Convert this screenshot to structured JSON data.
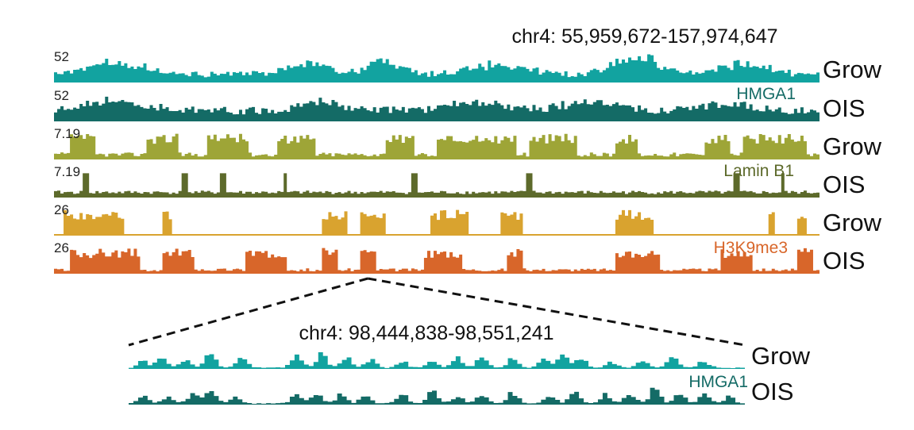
{
  "figure": {
    "top_region_label": "chr4: 55,959,672-157,974,647",
    "zoom_region_label": "chr4: 98,444,838-98,551,241"
  },
  "chart_data": [
    {
      "type": "area",
      "panel": "whole-region",
      "region": "chr4: 55,959,672-157,974,647",
      "xlabel": "",
      "ylabel": "",
      "tracks": [
        {
          "id": "hmga1-grow",
          "mark": "HMGA1",
          "condition": "Grow",
          "scale_label": "52",
          "ylim": [
            0,
            52
          ],
          "color": "#12A3A0",
          "bins": 240,
          "mean": 0.32,
          "jitter": 0.34,
          "seed": 11,
          "bumps": [
            [
              0.08,
              0.55,
              0.05
            ],
            [
              0.33,
              0.45,
              0.04
            ],
            [
              0.43,
              0.55,
              0.03
            ],
            [
              0.58,
              0.45,
              0.05
            ],
            [
              0.76,
              0.75,
              0.04
            ],
            [
              0.9,
              0.5,
              0.04
            ]
          ]
        },
        {
          "id": "hmga1-ois",
          "mark": "HMGA1",
          "condition": "OIS",
          "scale_label": "52",
          "ylim": [
            0,
            52
          ],
          "color": "#146B66",
          "bins": 240,
          "mean": 0.44,
          "jitter": 0.32,
          "seed": 23,
          "bumps": [
            [
              0.08,
              0.45,
              0.05
            ],
            [
              0.35,
              0.4,
              0.04
            ],
            [
              0.55,
              0.35,
              0.05
            ],
            [
              0.7,
              0.45,
              0.05
            ],
            [
              0.88,
              0.35,
              0.04
            ]
          ]
        },
        {
          "id": "laminb1-grow",
          "mark": "Lamin B1",
          "condition": "Grow",
          "scale_label": "7.19",
          "ylim": [
            0,
            7.19
          ],
          "color": "#9EA537",
          "bins": 240,
          "mean": 0.18,
          "jitter": 0.42,
          "seed": 37,
          "blocks": [
            [
              0.02,
              0.05
            ],
            [
              0.12,
              0.16
            ],
            [
              0.2,
              0.25
            ],
            [
              0.29,
              0.34
            ],
            [
              0.43,
              0.47
            ],
            [
              0.5,
              0.6
            ],
            [
              0.62,
              0.68
            ],
            [
              0.73,
              0.76
            ],
            [
              0.85,
              0.88
            ],
            [
              0.9,
              0.98
            ]
          ]
        },
        {
          "id": "laminb1-ois",
          "mark": "Lamin B1",
          "condition": "OIS",
          "scale_label": "7.19",
          "ylim": [
            0,
            7.19
          ],
          "color": "#5D6A2B",
          "bins": 240,
          "mean": 0.22,
          "jitter": 0.28,
          "seed": 41,
          "spikes": [
            0.04,
            0.17,
            0.22,
            0.3,
            0.47,
            0.62,
            0.89,
            0.95
          ]
        },
        {
          "id": "h3k9me3-grow",
          "mark": "H3K9me3",
          "condition": "Grow",
          "scale_label": "26",
          "ylim": [
            0,
            26
          ],
          "color": "#D9A32F",
          "bins": 240,
          "mean": 0.05,
          "jitter": 0.28,
          "seed": 53,
          "blocks": [
            [
              0.01,
              0.09
            ],
            [
              0.14,
              0.15
            ],
            [
              0.35,
              0.38
            ],
            [
              0.4,
              0.43
            ],
            [
              0.49,
              0.54
            ],
            [
              0.58,
              0.61
            ],
            [
              0.73,
              0.78
            ],
            [
              0.93,
              0.94
            ],
            [
              0.97,
              0.98
            ]
          ]
        },
        {
          "id": "h3k9me3-ois",
          "mark": "H3K9me3",
          "condition": "OIS",
          "scale_label": "26",
          "ylim": [
            0,
            26
          ],
          "color": "#D8662A",
          "bins": 240,
          "mean": 0.15,
          "jitter": 0.35,
          "seed": 67,
          "blocks": [
            [
              0.02,
              0.11
            ],
            [
              0.14,
              0.18
            ],
            [
              0.25,
              0.3
            ],
            [
              0.35,
              0.37
            ],
            [
              0.4,
              0.42
            ],
            [
              0.48,
              0.53
            ],
            [
              0.59,
              0.61
            ],
            [
              0.73,
              0.79
            ],
            [
              0.87,
              0.91
            ],
            [
              0.97,
              0.99
            ]
          ]
        }
      ],
      "labels": {
        "conditions": [
          "Grow",
          "OIS",
          "Grow",
          "OIS",
          "Grow",
          "OIS"
        ],
        "marks": [
          "HMGA1",
          "Lamin B1",
          "H3K9me3"
        ],
        "scale_labels": [
          "52",
          "52",
          "7.19",
          "7.19",
          "26",
          "26"
        ]
      },
      "zoom_window": {
        "start_fraction": 0.41
      }
    },
    {
      "type": "area",
      "panel": "zoom",
      "region": "chr4: 98,444,838-98,551,241",
      "xlabel": "",
      "ylabel": "",
      "tracks": [
        {
          "id": "zoom-grow",
          "mark": "HMGA1",
          "condition": "Grow",
          "color": "#12A3A0",
          "bins": 130,
          "seed": 71,
          "peaks": [
            [
              0.02,
              0.35
            ],
            [
              0.05,
              0.55
            ],
            [
              0.09,
              0.45
            ],
            [
              0.13,
              0.75
            ],
            [
              0.18,
              0.5
            ],
            [
              0.27,
              0.6
            ],
            [
              0.31,
              0.7
            ],
            [
              0.35,
              0.55
            ],
            [
              0.39,
              0.45
            ],
            [
              0.44,
              0.35
            ],
            [
              0.49,
              0.4
            ],
            [
              0.53,
              0.5
            ],
            [
              0.57,
              0.6
            ],
            [
              0.62,
              0.55
            ],
            [
              0.67,
              0.45
            ],
            [
              0.7,
              0.75
            ],
            [
              0.73,
              0.5
            ],
            [
              0.78,
              0.3
            ],
            [
              0.83,
              0.4
            ],
            [
              0.88,
              0.6
            ],
            [
              0.93,
              0.35
            ]
          ]
        },
        {
          "id": "zoom-ois",
          "mark": "HMGA1",
          "condition": "OIS",
          "color": "#146B66",
          "bins": 130,
          "seed": 83,
          "peaks": [
            [
              0.02,
              0.45
            ],
            [
              0.06,
              0.35
            ],
            [
              0.1,
              0.55
            ],
            [
              0.13,
              0.75
            ],
            [
              0.17,
              0.35
            ],
            [
              0.27,
              0.5
            ],
            [
              0.3,
              0.55
            ],
            [
              0.34,
              0.45
            ],
            [
              0.38,
              0.4
            ],
            [
              0.44,
              0.45
            ],
            [
              0.49,
              0.6
            ],
            [
              0.53,
              0.45
            ],
            [
              0.57,
              0.4
            ],
            [
              0.62,
              0.55
            ],
            [
              0.68,
              0.5
            ],
            [
              0.72,
              0.6
            ],
            [
              0.77,
              0.45
            ],
            [
              0.81,
              0.55
            ],
            [
              0.85,
              0.75
            ],
            [
              0.89,
              0.5
            ],
            [
              0.93,
              0.45
            ],
            [
              0.97,
              0.35
            ]
          ]
        }
      ],
      "labels": {
        "conditions": [
          "Grow",
          "OIS"
        ],
        "marks": [
          "HMGA1"
        ]
      }
    }
  ]
}
